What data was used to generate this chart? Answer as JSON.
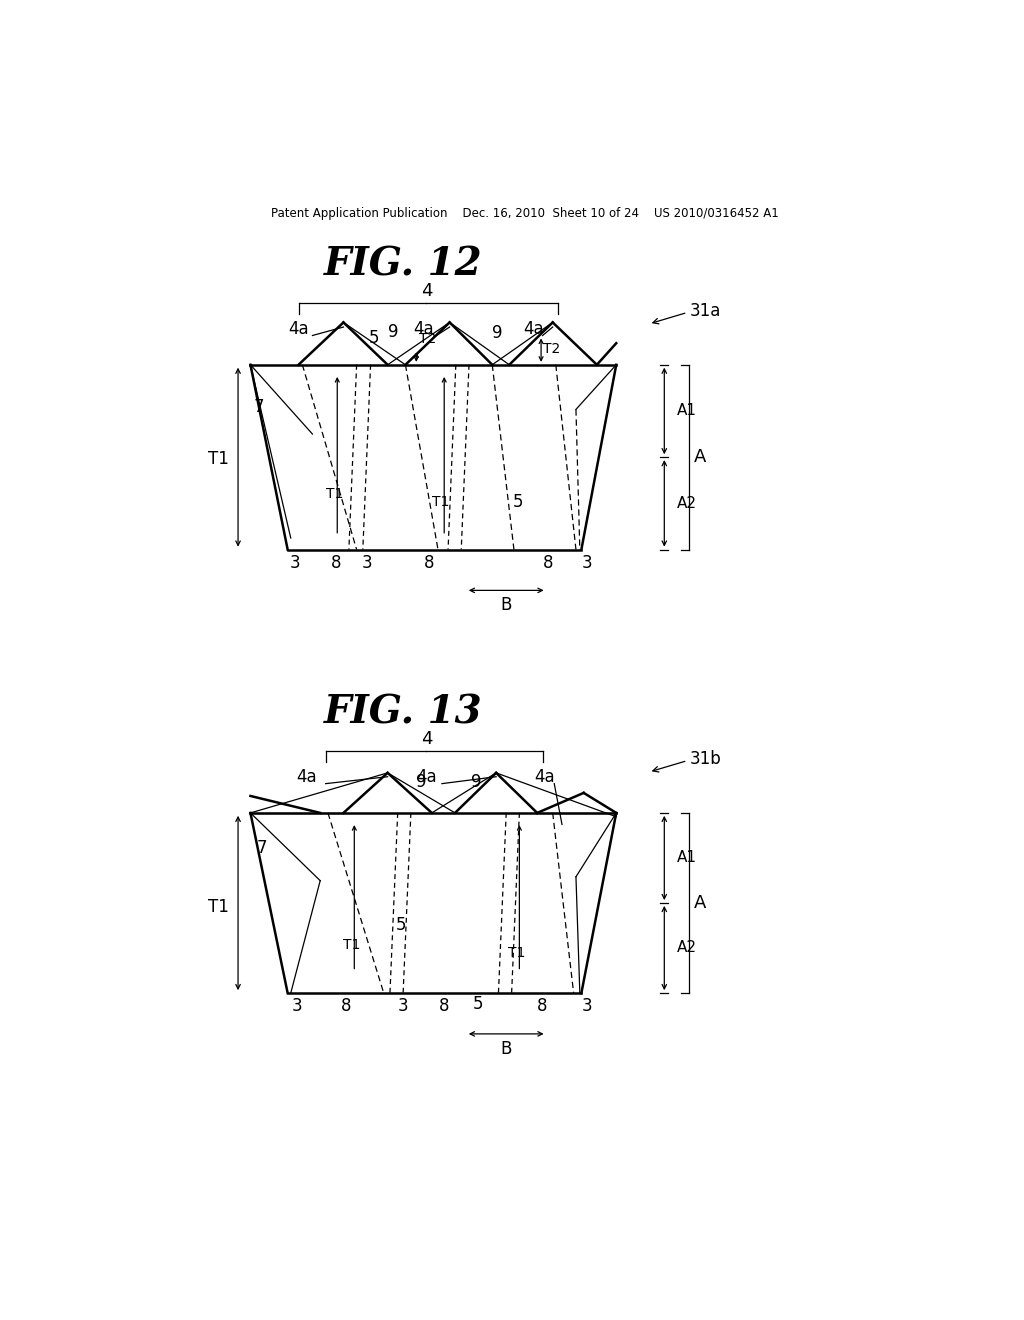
{
  "background_color": "#ffffff",
  "header_text": "Patent Application Publication    Dec. 16, 2010  Sheet 10 of 24    US 2010/0316452 A1",
  "fig12_title": "FIG. 12",
  "fig13_title": "FIG. 13",
  "fig12_label": "31a",
  "fig13_label": "31b"
}
